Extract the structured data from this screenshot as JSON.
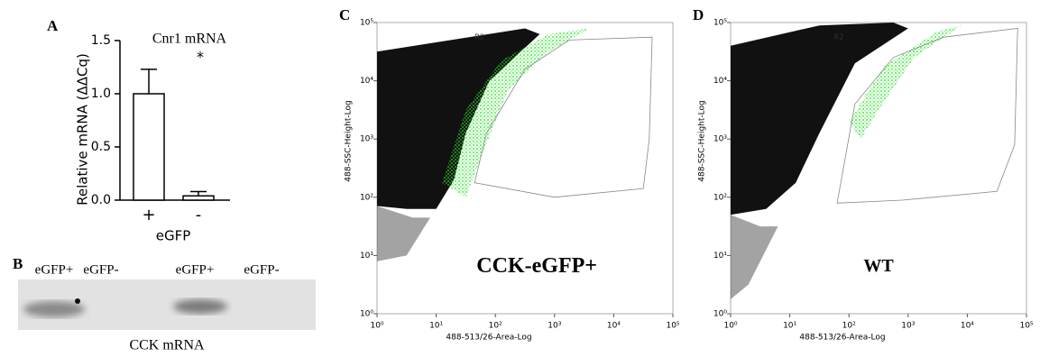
{
  "chart_data": [
    {
      "type": "bar",
      "letter": "A",
      "title": "Cnr1 mRNA",
      "ylabel": "Relative mRNA (ΔΔCq)",
      "xlabel": "eGFP",
      "categories": [
        "+",
        "-"
      ],
      "values": [
        1.0,
        0.04
      ],
      "errors": [
        0.23,
        0.04
      ],
      "annotation": "*",
      "ylim": [
        0,
        1.5
      ],
      "yticks": [
        {
          "value": 0,
          "label": "0.0"
        },
        0.5,
        {
          "value": 1,
          "label": "1.0"
        },
        1.5
      ],
      "color": "#ffffff"
    },
    {
      "type": "scatter",
      "letter": "C",
      "annotation": "CCK-eGFP+",
      "gate_label": "R2",
      "xlabel": "488-513/26-Area-Log",
      "ylabel": "488-SSC-Height-Log",
      "log": true,
      "xlim": [
        1,
        100000
      ],
      "ylim": [
        1,
        100000
      ],
      "xticks": [
        {
          "value": 1,
          "label": "10⁰"
        },
        {
          "value": 10,
          "label": "10¹"
        },
        {
          "value": 100,
          "label": "10²"
        },
        {
          "value": 1000,
          "label": "10³"
        },
        {
          "value": 10000,
          "label": "10⁴"
        },
        {
          "value": 100000,
          "label": "10⁵"
        }
      ],
      "yticks": [
        {
          "value": 1,
          "label": "10⁰"
        },
        {
          "value": 10,
          "label": "10¹"
        },
        {
          "value": 100,
          "label": "10²"
        },
        {
          "value": 1000,
          "label": "10³"
        },
        {
          "value": 10000,
          "label": "10⁴"
        },
        {
          "value": 100000,
          "label": "10⁵"
        }
      ]
    },
    {
      "type": "scatter",
      "letter": "D",
      "annotation": "WT",
      "gate_label": "R2",
      "xlabel": "488-513/26-Area-Log",
      "ylabel": "488-SSC-Height-Log",
      "log": true,
      "xlim": [
        1,
        100000
      ],
      "ylim": [
        1,
        100000
      ],
      "xticks": [
        {
          "value": 1,
          "label": "10⁰"
        },
        {
          "value": 10,
          "label": "10¹"
        },
        {
          "value": 100,
          "label": "10²"
        },
        {
          "value": 1000,
          "label": "10³"
        },
        {
          "value": 10000,
          "label": "10⁴"
        },
        {
          "value": 100000,
          "label": "10⁵"
        }
      ],
      "yticks": [
        {
          "value": 1,
          "label": "10⁰"
        },
        {
          "value": 10,
          "label": "10¹"
        },
        {
          "value": 100,
          "label": "10²"
        },
        {
          "value": 1000,
          "label": "10³"
        },
        {
          "value": 10000,
          "label": "10⁴"
        },
        {
          "value": 100000,
          "label": "10⁵"
        }
      ]
    }
  ],
  "gel": {
    "letter": "B",
    "lanes": [
      "eGFP+",
      "eGFP-",
      "eGFP+",
      "eGFP-"
    ],
    "caption": "CCK mRNA"
  }
}
